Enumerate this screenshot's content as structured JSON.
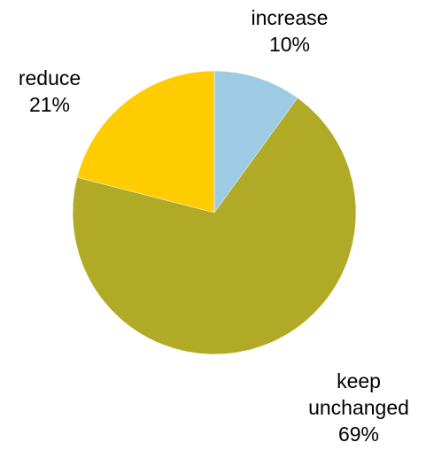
{
  "chart_data": {
    "type": "pie",
    "slices": [
      {
        "label": "increase",
        "label_lines": [
          "increase"
        ],
        "value": 10,
        "value_text": "10%",
        "color": "#9ccbe3"
      },
      {
        "label": "keep unchanged",
        "label_lines": [
          "keep",
          "unchanged"
        ],
        "value": 69,
        "value_text": "69%",
        "color": "#b0aa26"
      },
      {
        "label": "reduce",
        "label_lines": [
          "reduce"
        ],
        "value": 21,
        "value_text": "21%",
        "color": "#ffcc00"
      }
    ],
    "start_angle_deg": 0,
    "direction": "clockwise",
    "legend": "none"
  }
}
